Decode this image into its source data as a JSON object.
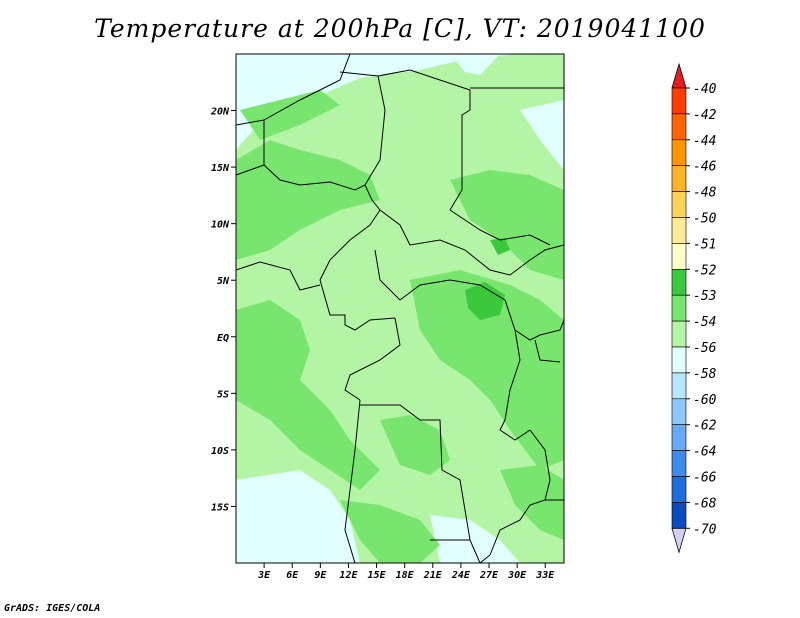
{
  "title": "Temperature at 200hPa [C], VT: 2019041100",
  "footer": "GrADS: IGES/COLA",
  "map": {
    "lon_range": [
      0,
      35
    ],
    "lat_range": [
      -20,
      25
    ],
    "lat_ticks": [
      {
        "value": 20,
        "label": "20N"
      },
      {
        "value": 15,
        "label": "15N"
      },
      {
        "value": 10,
        "label": "10N"
      },
      {
        "value": 5,
        "label": "5N"
      },
      {
        "value": 0,
        "label": "EQ"
      },
      {
        "value": -5,
        "label": "5S"
      },
      {
        "value": -10,
        "label": "10S"
      },
      {
        "value": -15,
        "label": "15S"
      }
    ],
    "lon_ticks": [
      {
        "value": 3,
        "label": "3E"
      },
      {
        "value": 6,
        "label": "6E"
      },
      {
        "value": 9,
        "label": "9E"
      },
      {
        "value": 12,
        "label": "12E"
      },
      {
        "value": 15,
        "label": "15E"
      },
      {
        "value": 18,
        "label": "18E"
      },
      {
        "value": 21,
        "label": "21E"
      },
      {
        "value": 24,
        "label": "24E"
      },
      {
        "value": 27,
        "label": "27E"
      },
      {
        "value": 30,
        "label": "30E"
      },
      {
        "value": 33,
        "label": "33E"
      }
    ],
    "colors": {
      "cold": "#e1ffff",
      "mid": "#b4f5a5",
      "warm": "#78e66e",
      "warmest": "#3cc83c",
      "border": "#000000"
    }
  },
  "colorbar": {
    "top_color": "#e61e1e",
    "bottom_color": "#d2d2f5",
    "levels": [
      {
        "label": "-40",
        "color": "#ff3c00"
      },
      {
        "label": "-42",
        "color": "#ff6400"
      },
      {
        "label": "-44",
        "color": "#ff9600"
      },
      {
        "label": "-46",
        "color": "#ffb428"
      },
      {
        "label": "-48",
        "color": "#ffd25a"
      },
      {
        "label": "-50",
        "color": "#ffeb96"
      },
      {
        "label": "-51",
        "color": "#ffffc8"
      },
      {
        "label": "-52",
        "color": "#3cc83c"
      },
      {
        "label": "-53",
        "color": "#78e66e"
      },
      {
        "label": "-54",
        "color": "#b4f5a5"
      },
      {
        "label": "-56",
        "color": "#e1ffff"
      },
      {
        "label": "-58",
        "color": "#b4e6ff"
      },
      {
        "label": "-60",
        "color": "#8cc8ff"
      },
      {
        "label": "-62",
        "color": "#64aaf5"
      },
      {
        "label": "-64",
        "color": "#3c8ceb"
      },
      {
        "label": "-66",
        "color": "#1e6edc"
      },
      {
        "label": "-68",
        "color": "#0a4bbe"
      },
      {
        "label": "-70",
        "color": "#0a1e96"
      }
    ]
  }
}
